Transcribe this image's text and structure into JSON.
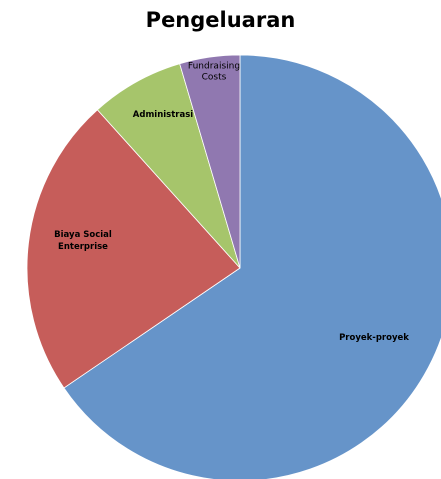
{
  "chart_data": {
    "type": "pie",
    "title": "Pengeluaran",
    "slices": [
      {
        "label": "Proyek-proyek",
        "value": 64.5,
        "color": "#6694c9"
      },
      {
        "label": "Biaya Social Enterprise",
        "label_lines": [
          "Biaya Social",
          "Enterprise"
        ],
        "value": 22.5,
        "color": "#c65d5a"
      },
      {
        "label": "Administrasi",
        "value": 7.0,
        "color": "#a6c56b"
      },
      {
        "label": "Fundraising Costs",
        "label_lines": [
          "Fundraising",
          "Costs"
        ],
        "value": 4.5,
        "color": "#9078b0"
      }
    ],
    "start_angle_deg": 0,
    "direction": "clockwise",
    "legend": false
  }
}
